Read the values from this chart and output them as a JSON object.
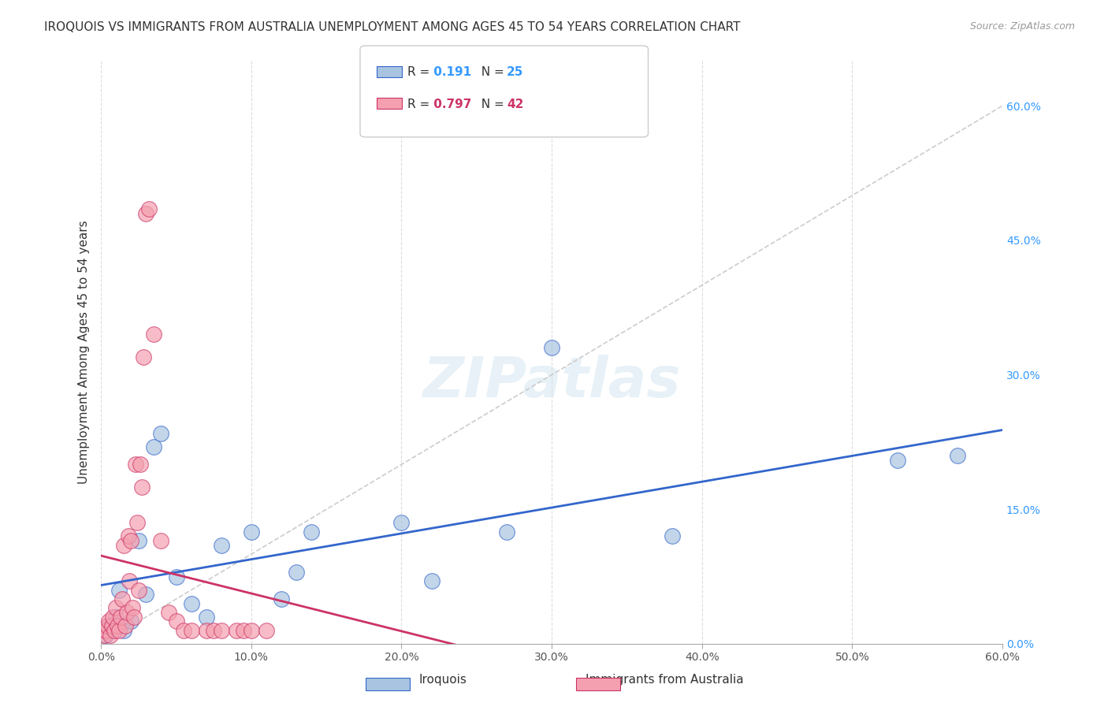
{
  "title": "IROQUOIS VS IMMIGRANTS FROM AUSTRALIA UNEMPLOYMENT AMONG AGES 45 TO 54 YEARS CORRELATION CHART",
  "source": "Source: ZipAtlas.com",
  "xlabel_bottom": "",
  "ylabel": "Unemployment Among Ages 45 to 54 years",
  "x_tick_labels": [
    "0.0%",
    "10.0%",
    "20.0%",
    "30.0%",
    "40.0%",
    "50.0%",
    "60.0%"
  ],
  "x_tick_values": [
    0,
    10,
    20,
    30,
    40,
    50,
    60
  ],
  "y_tick_labels_right": [
    "60.0%",
    "45.0%",
    "30.0%",
    "15.0%",
    "0.0%"
  ],
  "y_tick_values_right": [
    60,
    45,
    30,
    15,
    0
  ],
  "xlim": [
    0,
    60
  ],
  "ylim": [
    0,
    65
  ],
  "iroquois_R": 0.191,
  "iroquois_N": 25,
  "australia_R": 0.797,
  "australia_N": 42,
  "iroquois_color": "#a8c4e0",
  "australia_color": "#f4a0b0",
  "iroquois_line_color": "#3366cc",
  "australia_line_color": "#cc3366",
  "iroquois_x": [
    0.5,
    1.0,
    1.2,
    1.5,
    2.0,
    2.5,
    3.0,
    3.5,
    4.0,
    5.0,
    6.0,
    7.0,
    8.0,
    10.0,
    12.0,
    13.0,
    14.0,
    20.0,
    22.0,
    27.0,
    30.0,
    38.0,
    53.0,
    57.0,
    0.3
  ],
  "iroquois_y": [
    2.0,
    3.0,
    6.0,
    1.5,
    2.5,
    11.5,
    5.5,
    22.0,
    23.5,
    7.5,
    4.5,
    3.0,
    11.0,
    12.5,
    5.0,
    8.0,
    12.5,
    13.5,
    7.0,
    12.5,
    33.0,
    12.0,
    20.5,
    21.0,
    1.0
  ],
  "australia_x": [
    0.2,
    0.3,
    0.4,
    0.5,
    0.6,
    0.7,
    0.8,
    0.9,
    1.0,
    1.1,
    1.2,
    1.3,
    1.4,
    1.5,
    1.6,
    1.7,
    1.8,
    1.9,
    2.0,
    2.1,
    2.2,
    2.3,
    2.4,
    2.5,
    2.6,
    2.7,
    2.8,
    3.0,
    3.2,
    3.5,
    4.0,
    4.5,
    5.0,
    5.5,
    6.0,
    7.0,
    7.5,
    8.0,
    9.0,
    9.5,
    10.0,
    11.0
  ],
  "australia_y": [
    1.0,
    1.5,
    2.0,
    2.5,
    1.0,
    2.0,
    3.0,
    1.5,
    4.0,
    2.0,
    1.5,
    3.0,
    5.0,
    11.0,
    2.0,
    3.5,
    12.0,
    7.0,
    11.5,
    4.0,
    3.0,
    20.0,
    13.5,
    6.0,
    20.0,
    17.5,
    32.0,
    48.0,
    48.5,
    34.5,
    11.5,
    3.5,
    2.5,
    1.5,
    1.5,
    1.5,
    1.5,
    1.5,
    1.5,
    1.5,
    1.5,
    1.5
  ],
  "watermark": "ZIPatlas",
  "background_color": "#ffffff",
  "grid_color": "#dddddd"
}
